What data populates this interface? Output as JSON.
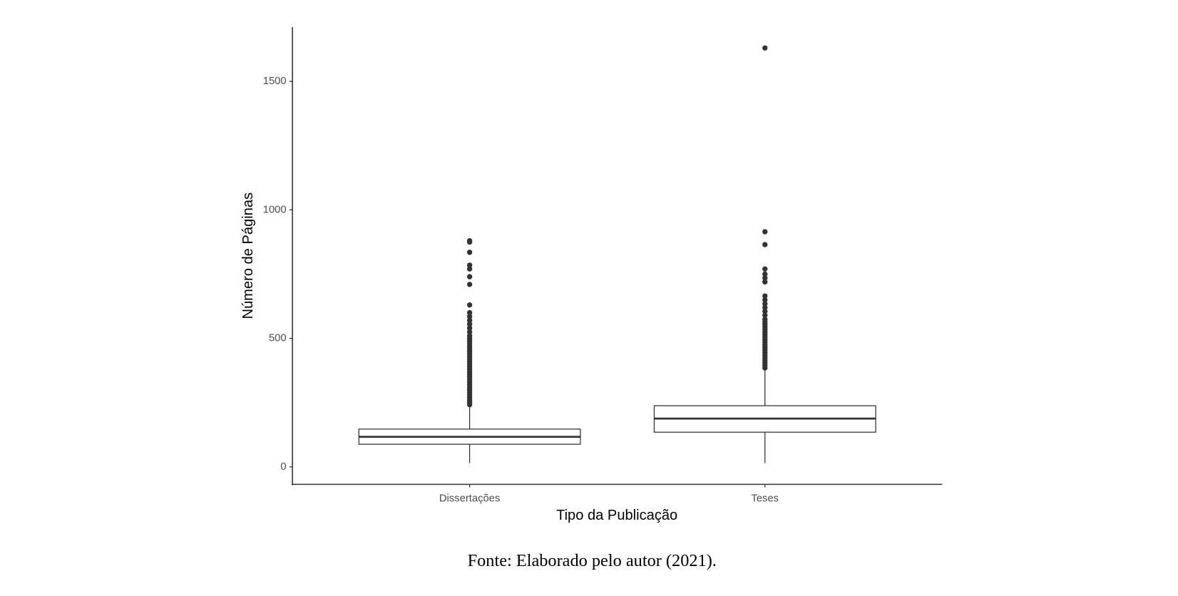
{
  "chart_data": {
    "type": "box",
    "x_label": "Tipo da Publicação",
    "y_label": "Número de Páginas",
    "caption": "Fonte: Elaborado pelo autor (2021).",
    "categories": [
      "Dissertações",
      "Teses"
    ],
    "boxes": [
      {
        "low": 15,
        "q1": 88,
        "median": 117,
        "q3": 147,
        "high": 238,
        "outliers": [
          242,
          250,
          260,
          270,
          280,
          290,
          300,
          310,
          320,
          330,
          340,
          350,
          360,
          370,
          380,
          390,
          400,
          410,
          420,
          430,
          440,
          450,
          460,
          470,
          480,
          490,
          500,
          510,
          525,
          540,
          555,
          570,
          585,
          600,
          630,
          710,
          740,
          770,
          785,
          835,
          875,
          880
        ]
      },
      {
        "low": 15,
        "q1": 135,
        "median": 188,
        "q3": 238,
        "high": 379,
        "outliers": [
          385,
          395,
          405,
          415,
          425,
          435,
          445,
          455,
          465,
          475,
          485,
          495,
          505,
          515,
          525,
          535,
          545,
          555,
          565,
          575,
          590,
          605,
          620,
          635,
          650,
          665,
          720,
          735,
          750,
          770,
          865,
          915,
          1630
        ]
      }
    ],
    "color": "#333333",
    "ylim": [
      -68,
      1711
    ],
    "yticks": [
      0,
      500,
      1000,
      1500
    ],
    "grid": false
  }
}
